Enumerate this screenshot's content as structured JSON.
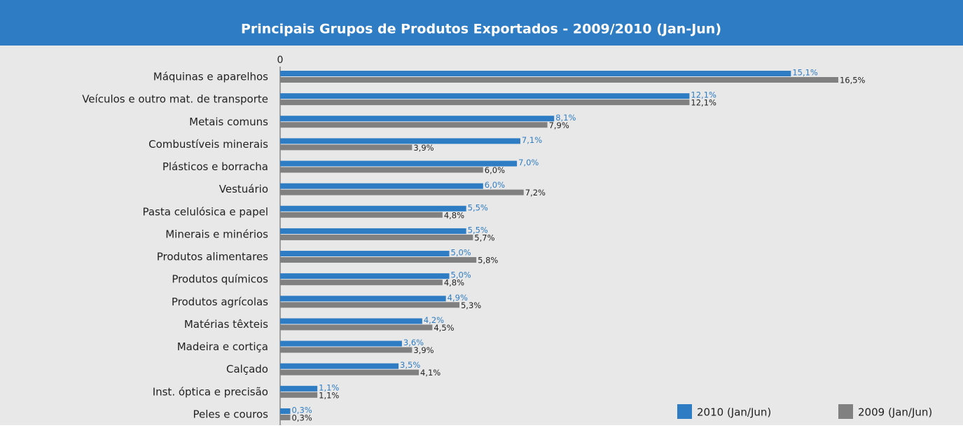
{
  "chart_data": {
    "type": "hbar",
    "title": "Principais Grupos de Produtos Exportados - 2009/2010 (Jan-Jun)",
    "categories": [
      "Máquinas e  aparelhos",
      "Veículos e outro mat. de transporte",
      "Metais comuns",
      "Combustíveis minerais",
      "Plásticos e borracha",
      "Vestuário",
      "Pasta celulósica e papel",
      "Minerais e minérios",
      "Produtos alimentares",
      "Produtos químicos",
      "Produtos agrícolas",
      "Matérias têxteis",
      "Madeira e cortiça",
      "Calçado",
      "Inst. óptica e precisão",
      "Peles e couros"
    ],
    "series": [
      {
        "name": "2010 (Jan/Jun)",
        "color": "#2e7cc4",
        "values": [
          15.1,
          12.1,
          8.1,
          7.1,
          7.0,
          6.0,
          5.5,
          5.5,
          5.0,
          5.0,
          4.9,
          4.2,
          3.6,
          3.5,
          1.1,
          0.3
        ],
        "value_labels": [
          "15,1%",
          "12,1%",
          "8,1%",
          "7,1%",
          "7,0%",
          "6,0%",
          "5,5%",
          "5,5%",
          "5,0%",
          "5,0%",
          "4,9%",
          "4,2%",
          "3,6%",
          "3,5%",
          "1,1%",
          "0,3%"
        ]
      },
      {
        "name": "2009 (Jan/Jun)",
        "color": "#808080",
        "values": [
          16.5,
          12.1,
          7.9,
          3.9,
          6.0,
          7.2,
          4.8,
          5.7,
          5.8,
          4.8,
          5.3,
          4.5,
          3.9,
          4.1,
          1.1,
          0.3
        ],
        "value_labels": [
          "16,5%",
          "12,1%",
          "7,9%",
          "3,9%",
          "6,0%",
          "7,2%",
          "4,8%",
          "5,7%",
          "5,8%",
          "4,8%",
          "5,3%",
          "4,5%",
          "3,9%",
          "4,1%",
          "1,1%",
          "0,3%"
        ]
      }
    ],
    "xlim": [
      0,
      20
    ],
    "xticks": [
      0
    ],
    "legend": "lower right"
  }
}
